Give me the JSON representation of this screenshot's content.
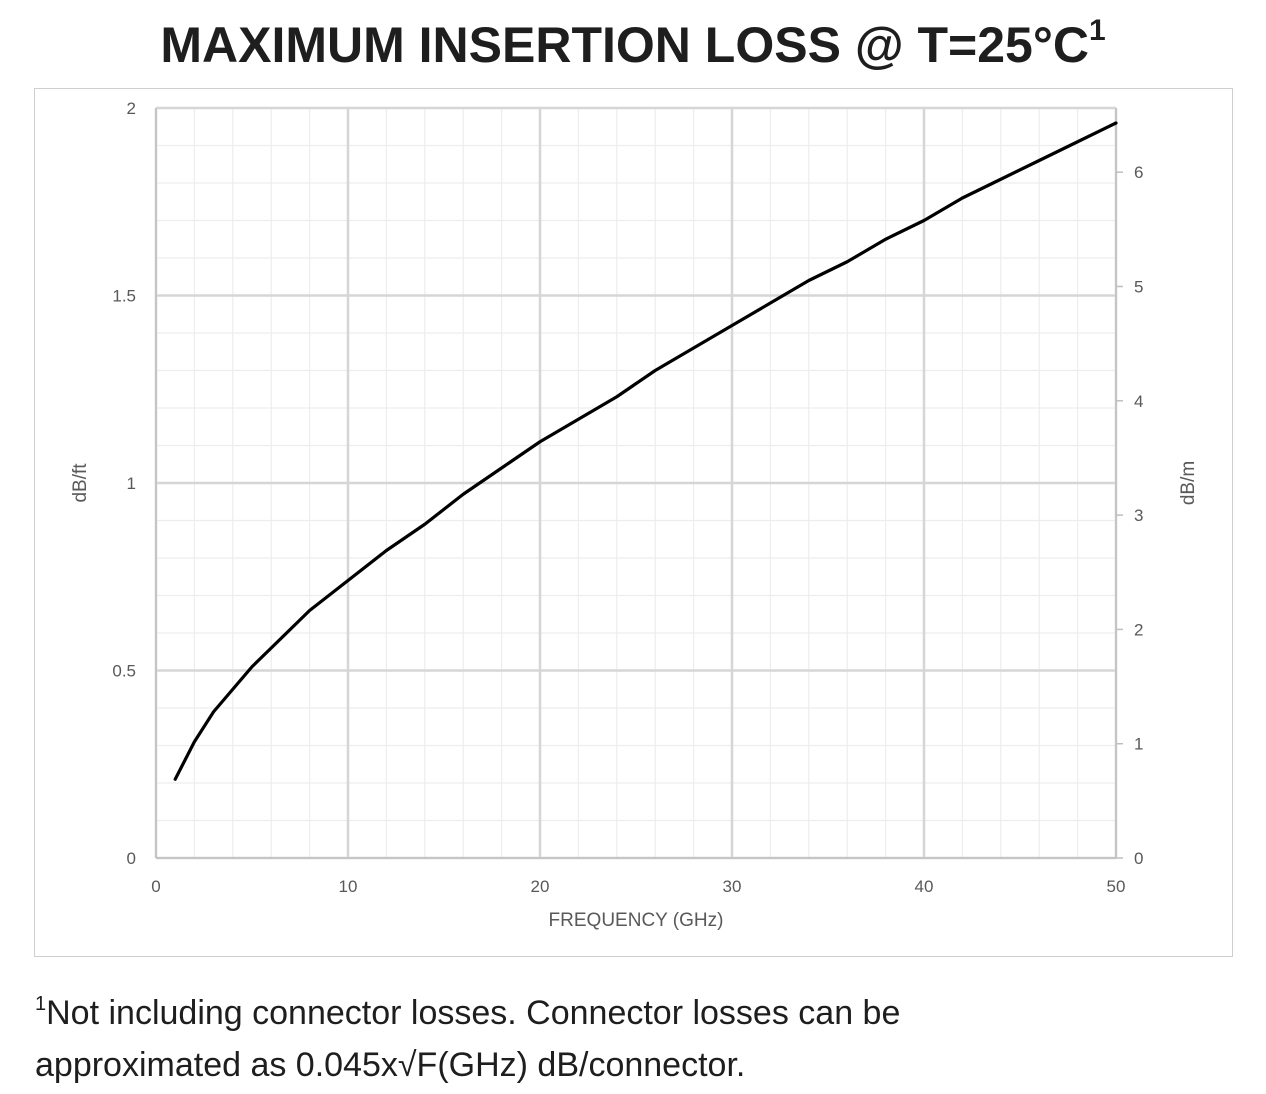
{
  "title": {
    "text": "MAXIMUM INSERTION LOSS @ T=25°C",
    "superscript": "1"
  },
  "footnote": {
    "marker": "1",
    "line1": "Not including connector losses.  Connector losses can be",
    "line2": "approximated as 0.045x√F(GHz) dB/connector."
  },
  "chart_data": {
    "type": "line",
    "xlabel": "FREQUENCY (GHz)",
    "ylabel": "dB/ft",
    "y2label": "dB/m",
    "xlim": [
      0,
      50
    ],
    "ylim": [
      0,
      2
    ],
    "y2lim": [
      0,
      6.5617
    ],
    "x_ticks": [
      "0",
      "10",
      "20",
      "30",
      "40",
      "50"
    ],
    "y_ticks": [
      "0",
      "0.5",
      "1",
      "1.5",
      "2"
    ],
    "y2_ticks": [
      "0",
      "1",
      "2",
      "3",
      "4",
      "5",
      "6"
    ],
    "grid": true,
    "series": [
      {
        "color": "#000000",
        "x": [
          1,
          2,
          3,
          4,
          5,
          6,
          7,
          8,
          9,
          10,
          12,
          14,
          16,
          18,
          20,
          22,
          24,
          26,
          28,
          30,
          32,
          34,
          36,
          38,
          40,
          42,
          44,
          46,
          48,
          50
        ],
        "y": [
          0.21,
          0.31,
          0.39,
          0.45,
          0.51,
          0.56,
          0.61,
          0.66,
          0.7,
          0.74,
          0.82,
          0.89,
          0.97,
          1.04,
          1.11,
          1.17,
          1.23,
          1.3,
          1.36,
          1.42,
          1.48,
          1.54,
          1.59,
          1.65,
          1.7,
          1.76,
          1.81,
          1.86,
          1.91,
          1.96
        ]
      }
    ]
  }
}
